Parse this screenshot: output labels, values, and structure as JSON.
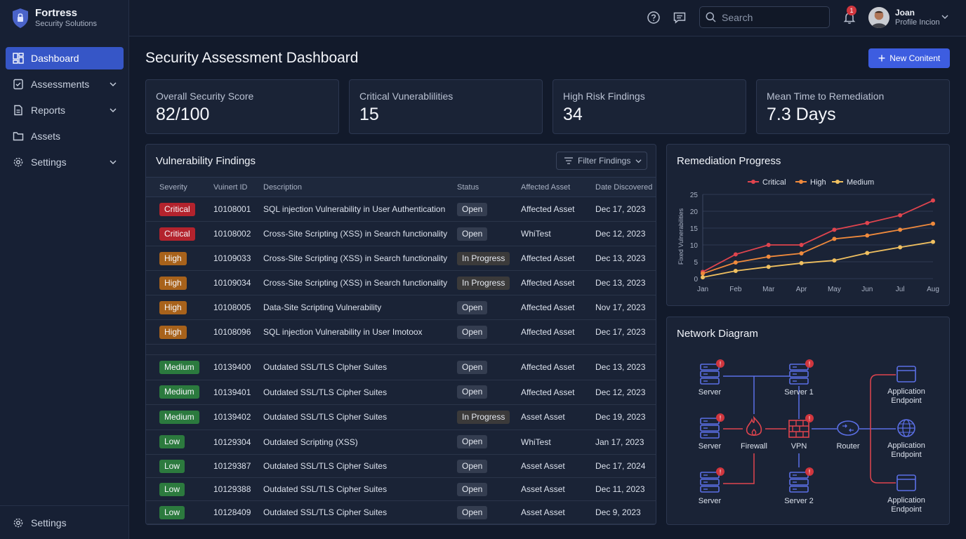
{
  "brand": {
    "title": "Fortress",
    "subtitle": "Security Solutions"
  },
  "sidebar": {
    "items": [
      {
        "label": "Dashboard",
        "icon": "dashboard-icon",
        "active": true
      },
      {
        "label": "Assessments",
        "icon": "clipboard-icon",
        "expandable": true
      },
      {
        "label": "Reports",
        "icon": "document-icon",
        "expandable": true
      },
      {
        "label": "Assets",
        "icon": "folder-icon"
      },
      {
        "label": "Settings",
        "icon": "gear-icon",
        "expandable": true
      }
    ],
    "bottom_label": "Settings"
  },
  "topbar": {
    "search_placeholder": "Search",
    "notification_count": "1",
    "user_name": "Joan",
    "user_subtitle": "Profile Incion"
  },
  "page": {
    "title": "Security Assessment Dashboard",
    "new_button": "New Conitent"
  },
  "stats": [
    {
      "label": "Overall Security Score",
      "value": "82/100"
    },
    {
      "label": "Critical Vunerablilities",
      "value": "15"
    },
    {
      "label": "High Risk Findings",
      "value": "34"
    },
    {
      "label": "Mean Time to Remediation",
      "value": "7.3 Days"
    }
  ],
  "findings": {
    "title": "Vulnerability Findings",
    "filter_label": "Filter Findings",
    "columns": [
      "Severity",
      "Vuinert ID",
      "Description",
      "Status",
      "Affected Asset",
      "Date Discovered"
    ],
    "rows": [
      {
        "severity": "Critical",
        "sev": "critical",
        "id": "10108001",
        "description": "SQL injection Vulnerability in User Authentication",
        "status": "Open",
        "asset": "Affected Asset",
        "date": "Dec 17, 2023"
      },
      {
        "severity": "Critical",
        "sev": "critical",
        "id": "10108002",
        "description": "Cross-Site Scripting (XSS) in Search functionality",
        "status": "Open",
        "asset": "WhiTest",
        "date": "Dec 12, 2023"
      },
      {
        "severity": "High",
        "sev": "high",
        "id": "10109033",
        "description": "Cross-Site Scripting (XSS) in Search functionality",
        "status": "In Progress",
        "asset": "Affected Asset",
        "date": "Dec 13, 2023"
      },
      {
        "severity": "High",
        "sev": "high",
        "id": "10109034",
        "description": "Cross-Site Scripting (XSS) in Search functionality",
        "status": "In Progress",
        "asset": "Affected Asset",
        "date": "Dec 13, 2023"
      },
      {
        "severity": "High",
        "sev": "high",
        "id": "10108005",
        "description": "Data-Site Scripting Vulnerability",
        "status": "Open",
        "asset": "Affected Asset",
        "date": "Nov 17, 2023"
      },
      {
        "severity": "High",
        "sev": "high",
        "id": "10108096",
        "description": "SQL injection Vulnerability in User Imotoox",
        "status": "Open",
        "asset": "Affected Asset",
        "date": "Dec 17, 2023"
      },
      {
        "severity": "Medium",
        "sev": "medium",
        "id": "10139400",
        "description": "Outdated SSL/TLS Clpher Suites",
        "status": "Open",
        "asset": "Affected Asset",
        "date": "Dec 13, 2023"
      },
      {
        "severity": "Medium",
        "sev": "medium",
        "id": "10139401",
        "description": "Outdated SSL/TLS Cipher Suites",
        "status": "Open",
        "asset": "Affected Asset",
        "date": "Dec 12, 2023"
      },
      {
        "severity": "Medium",
        "sev": "medium",
        "id": "10139402",
        "description": "Outdated SSL/TLS Cipher Suites",
        "status": "In Progress",
        "asset": "Asset Asset",
        "date": "Dec 19, 2023"
      },
      {
        "severity": "Low",
        "sev": "low",
        "id": "10129304",
        "description": "Outdated Scripting (XSS)",
        "status": "Open",
        "asset": "WhiTest",
        "date": "Jan 17, 2023"
      },
      {
        "severity": "Low",
        "sev": "low",
        "id": "10129387",
        "description": "Outdated SSL/TLS Cipher Suites",
        "status": "Open",
        "asset": "Asset Asset",
        "date": "Dec 17, 2024"
      },
      {
        "severity": "Low",
        "sev": "low",
        "id": "10129388",
        "description": "Outdated SSL/TLS Cipher Suites",
        "status": "Open",
        "asset": "Asset Asset",
        "date": "Dec 11, 2023"
      },
      {
        "severity": "Low",
        "sev": "low",
        "id": "10128409",
        "description": "Outdated SSL/TLS Cipher Suites",
        "status": "Open",
        "asset": "Asset Asset",
        "date": "Dec 9, 2023"
      }
    ]
  },
  "remediation": {
    "title": "Remediation Progress",
    "colors": {
      "Critical": "#e0444e",
      "High": "#f08a3c",
      "Medium": "#f0c060"
    }
  },
  "chart_data": {
    "type": "line",
    "title": "Remediation Progress",
    "xlabel": "",
    "ylabel": "Fixed Vulnerabilities",
    "categories": [
      "Jan",
      "Feb",
      "Mar",
      "Apr",
      "May",
      "Jun",
      "Jul",
      "Aug"
    ],
    "ylim": [
      0,
      25
    ],
    "yticks": [
      0,
      5,
      10,
      15,
      20,
      25
    ],
    "grid": true,
    "legend_position": "top",
    "series": [
      {
        "name": "Critical",
        "values": [
          2,
          7.2,
          10,
          10,
          14.5,
          16.5,
          18.8,
          23.2
        ]
      },
      {
        "name": "High",
        "values": [
          1.5,
          4.8,
          6.5,
          7.5,
          11.8,
          12.8,
          14.5,
          16.3
        ]
      },
      {
        "name": "Medium",
        "values": [
          0.4,
          2.3,
          3.5,
          4.6,
          5.4,
          7.6,
          9.3,
          10.9
        ]
      }
    ]
  },
  "network": {
    "title": "Network Diagram",
    "nodes": {
      "server_a": "Server",
      "server_b": "Server",
      "server_c": "Server",
      "server_1": "Server 1",
      "server_2": "Server 2",
      "firewall": "Firewall",
      "vpn": "VPN",
      "router": "Router",
      "endpoint_1": "Application Endpoint",
      "endpoint_2": "Application Endpoint",
      "endpoint_3": "Application Endpoint"
    },
    "alert_mark": "!"
  }
}
